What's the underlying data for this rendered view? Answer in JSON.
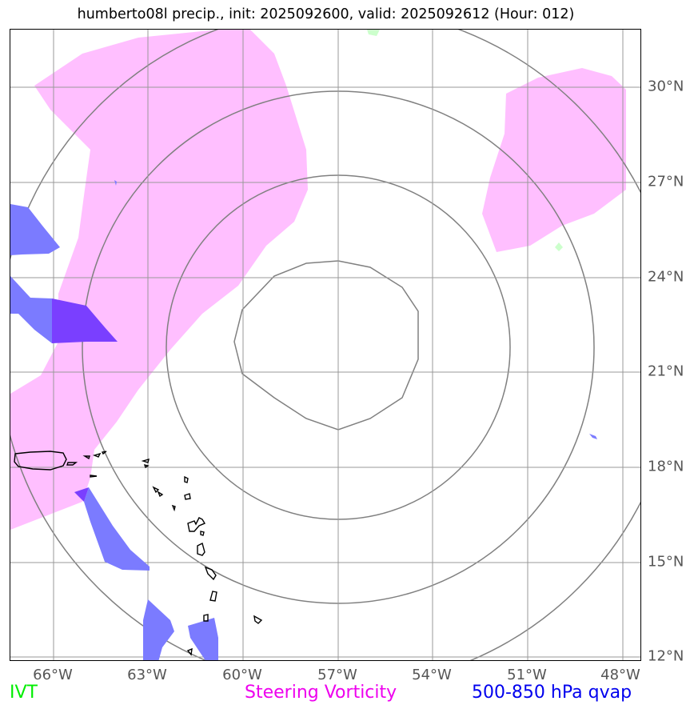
{
  "title": "humberto08l precip., init: 2025092600, valid: 2025092612 (Hour: 012)",
  "lat_labels": [
    "30°N",
    "27°N",
    "24°N",
    "21°N",
    "18°N",
    "15°N",
    "12°N"
  ],
  "lon_labels": [
    "66°W",
    "63°W",
    "60°W",
    "57°W",
    "54°W",
    "51°W",
    "48°W"
  ],
  "legend": {
    "ivt": {
      "label": "IVT",
      "color": "#00ee00"
    },
    "vorticity": {
      "label": "Steering Vorticity",
      "color": "#ee00ee"
    },
    "qvap": {
      "label": "500-850 hPa qvap",
      "color": "#0000ee"
    }
  },
  "colors": {
    "vorticity_fill": "#ffbfff",
    "qvap_light": "#7b7bff",
    "qvap_dark": "#7a3fff",
    "ivt_fill": "#ccffcc",
    "grid": "#999999",
    "range_rings": "#808080",
    "coastline": "#000000"
  }
}
